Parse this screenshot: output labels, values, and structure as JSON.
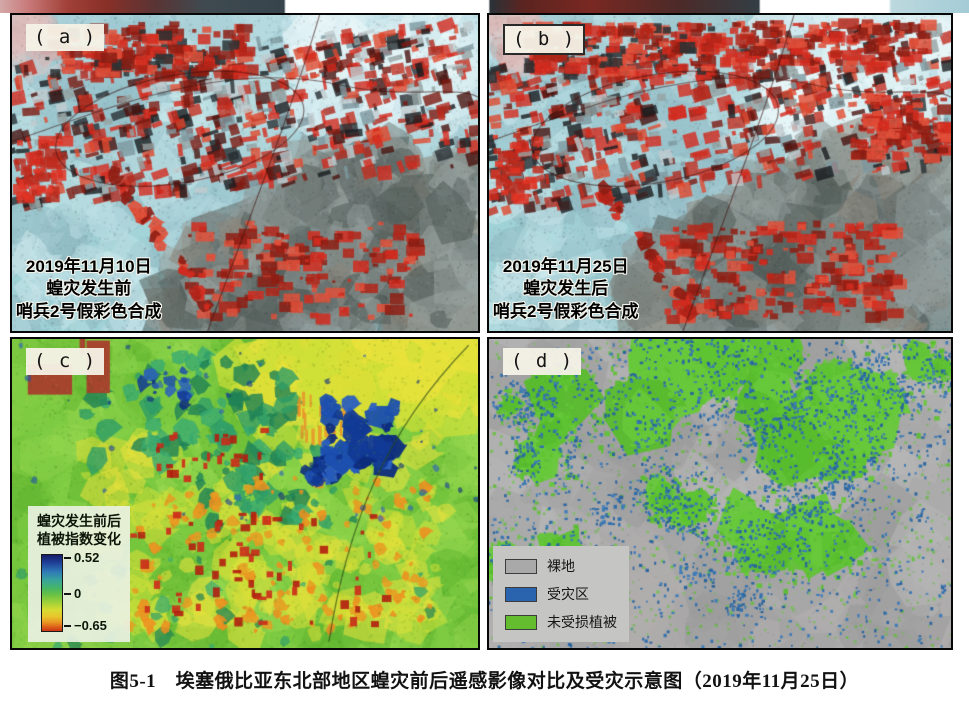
{
  "figure": {
    "caption": "图5-1　埃塞俄比亚东北部地区蝗灾前后遥感影像对比及受灾示意图（2019年11月25日）"
  },
  "panels": {
    "a": {
      "label": "( a )",
      "annotation": {
        "line1": "2019年11月10日",
        "line2": "蝗灾发生前",
        "line3": "哨兵2号假彩色合成"
      }
    },
    "b": {
      "label": "( b )",
      "annotation": {
        "line1": "2019年11月25日",
        "line2": "蝗灾发生后",
        "line3": "哨兵2号假彩色合成"
      }
    },
    "c": {
      "label": "( c )",
      "legend": {
        "title_line1": "蝗灾发生前后",
        "title_line2": "植被指数变化",
        "ticks": {
          "max": "0.52",
          "mid": "0",
          "min": "−0.65"
        },
        "colorbar_colors": [
          "#141e69",
          "#2e7ab6",
          "#67c244",
          "#d6dc33",
          "#c93614"
        ]
      }
    },
    "d": {
      "label": "( d )",
      "legend": {
        "items": [
          {
            "label": "裸地",
            "color": "#a9a9a9"
          },
          {
            "label": "受灾区",
            "color": "#2a64ae"
          },
          {
            "label": "未受损植被",
            "color": "#63bd2f"
          }
        ]
      }
    }
  }
}
